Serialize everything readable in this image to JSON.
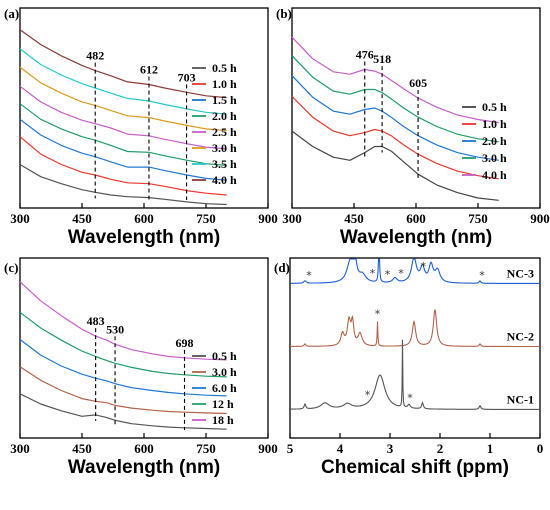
{
  "chart_data": [
    {
      "panel": "(a)",
      "type": "line",
      "xlabel": "Wavelength (nm)",
      "xlim": [
        300,
        900
      ],
      "xticks": [
        300,
        450,
        600,
        750,
        900
      ],
      "x": [
        300,
        350,
        400,
        450,
        482,
        520,
        560,
        612,
        650,
        703,
        750,
        800
      ],
      "annotations": [
        482,
        612,
        703
      ],
      "series": [
        {
          "name": "0.5 h",
          "color": "#555555",
          "values": [
            0.5,
            0.36,
            0.28,
            0.21,
            0.18,
            0.15,
            0.13,
            0.12,
            0.1,
            0.07,
            0.05,
            0.04
          ]
        },
        {
          "name": "1.0 h",
          "color": "#e8372f",
          "values": [
            0.82,
            0.62,
            0.5,
            0.41,
            0.38,
            0.33,
            0.29,
            0.28,
            0.25,
            0.2,
            0.17,
            0.15
          ]
        },
        {
          "name": "1.5 h",
          "color": "#1f77d0",
          "values": [
            1.02,
            0.84,
            0.72,
            0.63,
            0.59,
            0.53,
            0.47,
            0.47,
            0.43,
            0.38,
            0.34,
            0.32
          ]
        },
        {
          "name": "2.0 h",
          "color": "#1f9e6a",
          "values": [
            1.2,
            1.02,
            0.91,
            0.82,
            0.78,
            0.72,
            0.65,
            0.64,
            0.6,
            0.55,
            0.51,
            0.49
          ]
        },
        {
          "name": "2.5 h",
          "color": "#c75dc9",
          "values": [
            1.4,
            1.22,
            1.1,
            1.01,
            0.97,
            0.92,
            0.85,
            0.83,
            0.79,
            0.74,
            0.7,
            0.68
          ]
        },
        {
          "name": "3.0 h",
          "color": "#d99b1d",
          "values": [
            1.62,
            1.44,
            1.32,
            1.22,
            1.18,
            1.12,
            1.06,
            1.04,
            1.0,
            0.95,
            0.91,
            0.89
          ]
        },
        {
          "name": "3.5 h",
          "color": "#27c9c9",
          "values": [
            1.83,
            1.65,
            1.53,
            1.43,
            1.38,
            1.32,
            1.26,
            1.23,
            1.19,
            1.14,
            1.1,
            1.08
          ]
        },
        {
          "name": "4.0 h",
          "color": "#8b3a3a",
          "values": [
            2.05,
            1.88,
            1.75,
            1.64,
            1.58,
            1.52,
            1.45,
            1.42,
            1.38,
            1.33,
            1.29,
            1.27
          ]
        }
      ]
    },
    {
      "panel": "(b)",
      "type": "line",
      "xlabel": "Wavelength (nm)",
      "xlim": [
        300,
        900
      ],
      "xticks": [
        300,
        450,
        600,
        750,
        900
      ],
      "x": [
        300,
        350,
        400,
        440,
        476,
        500,
        518,
        540,
        570,
        605,
        650,
        700,
        750,
        800
      ],
      "annotations": [
        476,
        518,
        605
      ],
      "series": [
        {
          "name": "0.5 h",
          "color": "#444444",
          "values": [
            1.0,
            0.8,
            0.66,
            0.62,
            0.72,
            0.8,
            0.8,
            0.74,
            0.6,
            0.44,
            0.3,
            0.2,
            0.13,
            0.1
          ]
        },
        {
          "name": "1.0 h",
          "color": "#e8372f",
          "values": [
            1.45,
            1.18,
            1.0,
            0.94,
            0.98,
            1.02,
            1.0,
            0.94,
            0.82,
            0.7,
            0.58,
            0.48,
            0.42,
            0.38
          ]
        },
        {
          "name": "2.0 h",
          "color": "#1f77d0",
          "values": [
            1.72,
            1.44,
            1.26,
            1.22,
            1.28,
            1.3,
            1.26,
            1.18,
            1.06,
            0.94,
            0.82,
            0.72,
            0.66,
            0.62
          ]
        },
        {
          "name": "3.0 h",
          "color": "#1f9e6a",
          "values": [
            1.98,
            1.7,
            1.52,
            1.48,
            1.54,
            1.54,
            1.5,
            1.42,
            1.3,
            1.18,
            1.06,
            0.96,
            0.9,
            0.86
          ]
        },
        {
          "name": "4.0 h",
          "color": "#c75dc9",
          "values": [
            2.22,
            1.94,
            1.77,
            1.74,
            1.8,
            1.78,
            1.74,
            1.66,
            1.55,
            1.43,
            1.31,
            1.21,
            1.15,
            1.11
          ]
        }
      ]
    },
    {
      "panel": "(c)",
      "type": "line",
      "xlabel": "Wavelength (nm)",
      "xlim": [
        300,
        900
      ],
      "xticks": [
        300,
        450,
        600,
        750,
        900
      ],
      "x": [
        300,
        350,
        400,
        450,
        483,
        510,
        530,
        570,
        620,
        660,
        698,
        750,
        800
      ],
      "annotations": [
        483,
        530,
        698
      ],
      "series": [
        {
          "name": "0.5 h",
          "color": "#555555",
          "values": [
            0.55,
            0.4,
            0.3,
            0.22,
            0.24,
            0.2,
            0.16,
            0.11,
            0.08,
            0.06,
            0.05,
            0.04,
            0.03
          ]
        },
        {
          "name": "3.0 h",
          "color": "#b0644a",
          "values": [
            0.95,
            0.75,
            0.6,
            0.48,
            0.44,
            0.42,
            0.38,
            0.34,
            0.31,
            0.29,
            0.28,
            0.27,
            0.26
          ]
        },
        {
          "name": "6.0 h",
          "color": "#1f77d0",
          "values": [
            1.35,
            1.12,
            0.96,
            0.84,
            0.78,
            0.74,
            0.7,
            0.64,
            0.6,
            0.57,
            0.55,
            0.53,
            0.52
          ]
        },
        {
          "name": "12 h",
          "color": "#1f9e6a",
          "values": [
            1.75,
            1.52,
            1.34,
            1.18,
            1.1,
            1.04,
            1.0,
            0.94,
            0.88,
            0.85,
            0.83,
            0.81,
            0.8
          ]
        },
        {
          "name": "18 h",
          "color": "#c75dc9",
          "values": [
            2.2,
            1.92,
            1.7,
            1.5,
            1.4,
            1.34,
            1.28,
            1.2,
            1.14,
            1.1,
            1.08,
            1.06,
            1.05
          ]
        }
      ]
    },
    {
      "panel": "(d)",
      "type": "line",
      "xlabel": "Chemical shift (ppm)",
      "xlim": [
        5,
        0
      ],
      "xticks": [
        5,
        4,
        3,
        2,
        1,
        0
      ],
      "traces": [
        {
          "name": "NC-3",
          "color": "#1f5fd0",
          "baseline": 0.78,
          "peaks": [
            [
              4.7,
              0.02,
              0.03
            ],
            [
              3.8,
              0.14,
              0.08
            ],
            [
              3.72,
              0.3,
              0.04
            ],
            [
              3.55,
              0.06,
              0.08
            ],
            [
              3.22,
              0.6,
              0.008
            ],
            [
              2.9,
              0.04,
              0.05
            ],
            [
              2.52,
              0.2,
              0.06
            ],
            [
              2.35,
              0.12,
              0.05
            ],
            [
              2.18,
              0.14,
              0.05
            ],
            [
              2.05,
              0.1,
              0.06
            ],
            [
              1.2,
              0.02,
              0.02
            ]
          ],
          "stars": [
            4.62,
            3.35,
            3.05,
            2.78,
            2.33,
            1.16
          ]
        },
        {
          "name": "NC-2",
          "color": "#b0644a",
          "baseline": 0.42,
          "peaks": [
            [
              4.7,
              0.02,
              0.02
            ],
            [
              3.95,
              0.1,
              0.04
            ],
            [
              3.82,
              0.2,
              0.04
            ],
            [
              3.75,
              0.18,
              0.03
            ],
            [
              3.6,
              0.1,
              0.05
            ],
            [
              3.25,
              0.2,
              0.008
            ],
            [
              2.52,
              0.2,
              0.04
            ],
            [
              2.1,
              0.3,
              0.04
            ],
            [
              1.2,
              0.02,
              0.02
            ]
          ],
          "stars": [
            3.25
          ]
        },
        {
          "name": "NC-1",
          "color": "#555555",
          "baseline": 0.06,
          "peaks": [
            [
              4.7,
              0.04,
              0.02
            ],
            [
              4.3,
              0.05,
              0.1
            ],
            [
              3.85,
              0.04,
              0.1
            ],
            [
              3.2,
              0.28,
              0.12
            ],
            [
              2.75,
              0.55,
              0.006
            ],
            [
              2.62,
              0.03,
              0.03
            ],
            [
              2.35,
              0.05,
              0.02
            ],
            [
              1.2,
              0.03,
              0.02
            ]
          ],
          "stars": [
            3.45,
            2.6
          ]
        }
      ]
    }
  ]
}
